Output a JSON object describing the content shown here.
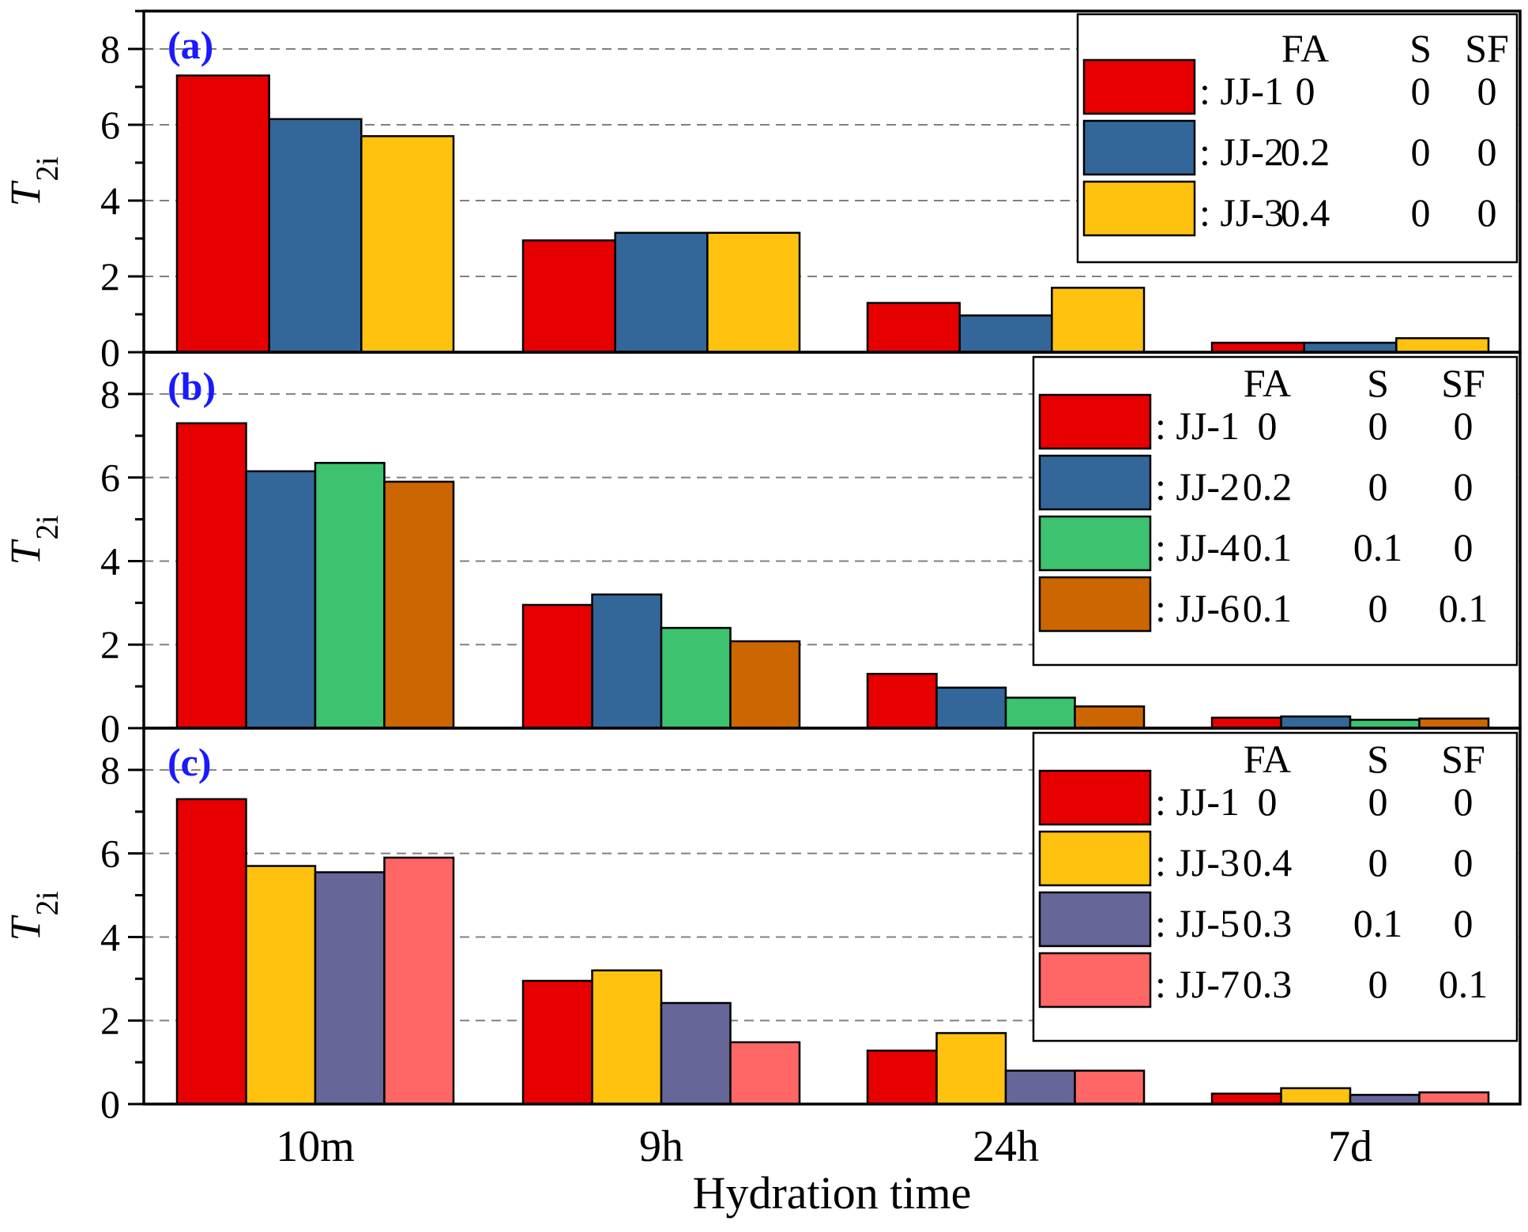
{
  "chart_data": [
    {
      "type": "bar",
      "panel_label": "(a)",
      "categories": [
        "10m",
        "9h",
        "24h",
        "7d"
      ],
      "xlabel": "Hydration time",
      "ylabel": "T",
      "ylabel_sub": "2i",
      "ylim": [
        0,
        9
      ],
      "yticks": [
        "0",
        "2",
        "4",
        "6",
        "8"
      ],
      "grid": "dashed horizontal",
      "legend_placement": "top-right",
      "legend_header": [
        "FA",
        "S",
        "SF"
      ],
      "series": [
        {
          "name": "JJ-1",
          "color": "#e60000",
          "FA": "0",
          "S": "0",
          "SF": "0",
          "values": [
            7.3,
            2.95,
            1.3,
            0.25
          ]
        },
        {
          "name": "JJ-2",
          "color": "#336699",
          "FA": "0.2",
          "S": "0",
          "SF": "0",
          "values": [
            6.15,
            3.15,
            0.97,
            0.25
          ]
        },
        {
          "name": "JJ-3",
          "color": "#ffc20e",
          "FA": "0.4",
          "S": "0",
          "SF": "0",
          "values": [
            5.7,
            3.15,
            1.7,
            0.37
          ]
        }
      ]
    },
    {
      "type": "bar",
      "panel_label": "(b)",
      "categories": [
        "10m",
        "9h",
        "24h",
        "7d"
      ],
      "xlabel": "Hydration time",
      "ylabel": "T",
      "ylabel_sub": "2i",
      "ylim": [
        0,
        9
      ],
      "yticks": [
        "0",
        "2",
        "4",
        "6",
        "8"
      ],
      "grid": "dashed horizontal",
      "legend_placement": "top-right",
      "legend_header": [
        "FA",
        "S",
        "SF"
      ],
      "series": [
        {
          "name": "JJ-1",
          "color": "#e60000",
          "FA": "0",
          "S": "0",
          "SF": "0",
          "values": [
            7.3,
            2.95,
            1.3,
            0.25
          ]
        },
        {
          "name": "JJ-2",
          "color": "#336699",
          "FA": "0.2",
          "S": "0",
          "SF": "0",
          "values": [
            6.15,
            3.2,
            0.97,
            0.28
          ]
        },
        {
          "name": "JJ-4",
          "color": "#3dc270",
          "FA": "0.1",
          "S": "0.1",
          "SF": "0",
          "values": [
            6.35,
            2.4,
            0.73,
            0.2
          ]
        },
        {
          "name": "JJ-6",
          "color": "#cc6600",
          "FA": "0.1",
          "S": "0",
          "SF": "0.1",
          "values": [
            5.9,
            2.08,
            0.52,
            0.23
          ]
        }
      ]
    },
    {
      "type": "bar",
      "panel_label": "(c)",
      "categories": [
        "10m",
        "9h",
        "24h",
        "7d"
      ],
      "xlabel": "Hydration time",
      "ylabel": "T",
      "ylabel_sub": "2i",
      "ylim": [
        0,
        9
      ],
      "yticks": [
        "0",
        "2",
        "4",
        "6",
        "8"
      ],
      "grid": "dashed horizontal",
      "legend_placement": "top-right",
      "legend_header": [
        "FA",
        "S",
        "SF"
      ],
      "series": [
        {
          "name": "JJ-1",
          "color": "#e60000",
          "FA": "0",
          "S": "0",
          "SF": "0",
          "values": [
            7.3,
            2.95,
            1.28,
            0.25
          ]
        },
        {
          "name": "JJ-3",
          "color": "#ffc20e",
          "FA": "0.4",
          "S": "0",
          "SF": "0",
          "values": [
            5.7,
            3.2,
            1.7,
            0.38
          ]
        },
        {
          "name": "JJ-5",
          "color": "#666699",
          "FA": "0.3",
          "S": "0.1",
          "SF": "0",
          "values": [
            5.55,
            2.42,
            0.8,
            0.22
          ]
        },
        {
          "name": "JJ-7",
          "color": "#ff6666",
          "FA": "0.3",
          "S": "0",
          "SF": "0.1",
          "values": [
            5.9,
            1.48,
            0.8,
            0.28
          ]
        }
      ]
    }
  ]
}
